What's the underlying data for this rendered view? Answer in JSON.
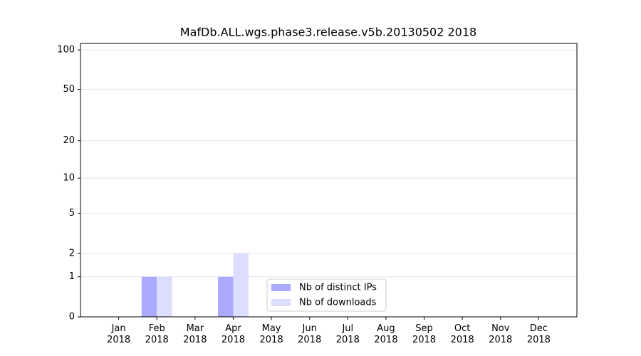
{
  "chart_data": {
    "type": "bar",
    "title": "MafDb.ALL.wgs.phase3.release.v5b.20130502 2018",
    "categories": [
      "Jan\n2018",
      "Feb\n2018",
      "Mar\n2018",
      "Apr\n2018",
      "May\n2018",
      "Jun\n2018",
      "Jul\n2018",
      "Aug\n2018",
      "Sep\n2018",
      "Oct\n2018",
      "Nov\n2018",
      "Dec\n2018"
    ],
    "series": [
      {
        "name": "Nb of distinct IPs",
        "color": "#aaaaff",
        "values": [
          0,
          1,
          0,
          1,
          0,
          0,
          0,
          0,
          0,
          0,
          0,
          0
        ]
      },
      {
        "name": "Nb of downloads",
        "color": "#ddddff",
        "values": [
          0,
          1,
          0,
          2,
          0,
          0,
          0,
          0,
          0,
          0,
          0,
          0
        ]
      }
    ],
    "yscale": "log1p",
    "ylim": [
      0,
      112
    ],
    "yticks": [
      0,
      1,
      2,
      5,
      10,
      20,
      50,
      100
    ],
    "grid": true,
    "legend": "lower center"
  }
}
